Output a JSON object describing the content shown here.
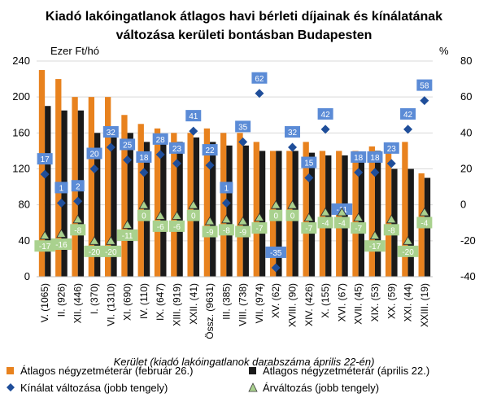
{
  "chart_data": {
    "type": "bar",
    "title_line1": "Kiadó lakóingatlanok átlagos havi bérleti díjainak és kínálatának",
    "title_line2": "változása kerületi bontásban Budapesten",
    "ylabel_left": "Ezer Ft/hó",
    "ylabel_right": "%",
    "xlabel": "Kerület (kiadó lakóingatlanok darabszáma április 22-én)",
    "ylim_left": [
      0,
      240
    ],
    "yticks_left": [
      0,
      40,
      80,
      120,
      160,
      200,
      240
    ],
    "ylim_right": [
      -40,
      80
    ],
    "yticks_right": [
      -40,
      -20,
      0,
      20,
      40,
      60,
      80
    ],
    "legend_position": "bottom",
    "categories": [
      "V. (1065)",
      "II. (926)",
      "XII. (446)",
      "I. (370)",
      "VI. (1310)",
      "XI. (690)",
      "IV. (110)",
      "IX. (647)",
      "XIII. (919)",
      "XXII. (41)",
      "Össz. (9631)",
      "III. (385)",
      "VIII. (738)",
      "VII. (974)",
      "XV. (62)",
      "XVIII. (90)",
      "XIV. (426)",
      "X. (155)",
      "XVI. (67)",
      "XVII. (45)",
      "XIX. (53)",
      "XX. (59)",
      "XXI. (44)",
      "XXIII. (19)"
    ],
    "series": [
      {
        "name": "Átlagos négyzetméterár (február 26.)",
        "axis": "left",
        "kind": "bar",
        "color": "#E8821E",
        "values": [
          230,
          220,
          200,
          200,
          200,
          180,
          170,
          165,
          160,
          160,
          165,
          160,
          160,
          150,
          140,
          140,
          150,
          140,
          140,
          140,
          145,
          140,
          150,
          115
        ]
      },
      {
        "name": "Átlagos négyzetméterár (április 22.)",
        "axis": "left",
        "kind": "bar",
        "color": "#1a1a1a",
        "values": [
          190,
          185,
          185,
          160,
          160,
          160,
          150,
          155,
          150,
          155,
          150,
          146,
          146,
          140,
          140,
          140,
          138,
          135,
          135,
          130,
          140,
          120,
          120,
          110
        ]
      },
      {
        "name": "Kínálat változása (jobb tengely)",
        "axis": "right",
        "kind": "marker",
        "marker": "diamond",
        "color": "#1F4E9A",
        "label_color": "#5B8BD6",
        "values": [
          17,
          1,
          2,
          20,
          32,
          25,
          18,
          28,
          23,
          41,
          22,
          1,
          35,
          62,
          -35,
          32,
          15,
          42,
          -11,
          18,
          18,
          23,
          42,
          58
        ]
      },
      {
        "name": "Árváltozás (jobb tengely)",
        "axis": "right",
        "kind": "marker",
        "marker": "triangle",
        "color": "#A9D18E",
        "label_color": "#A9D18E",
        "values": [
          -17,
          -16,
          -8,
          -20,
          -20,
          -11,
          0,
          -6,
          -6,
          0,
          -9,
          -8,
          -9,
          -7,
          0,
          0,
          -7,
          -4,
          -4,
          -7,
          -17,
          -8,
          -20,
          -4
        ]
      }
    ]
  }
}
